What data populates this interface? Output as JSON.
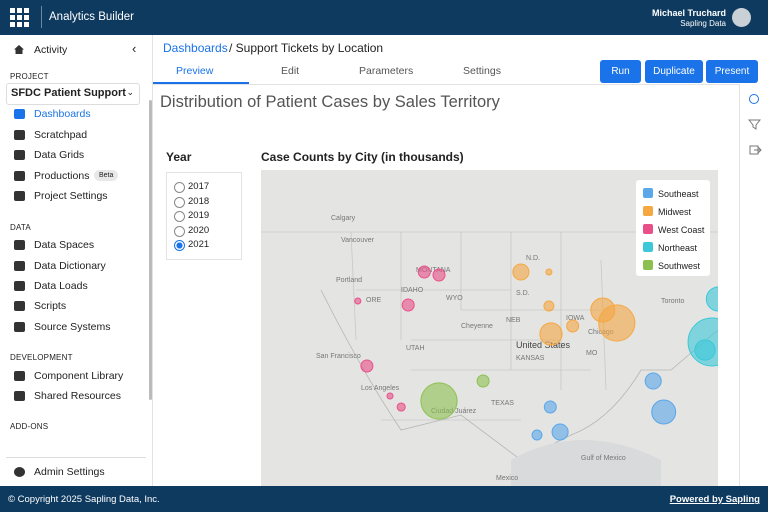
{
  "app": {
    "title": "Analytics Builder",
    "user": "Michael Truchard",
    "org": "Sapling Data"
  },
  "sidebar": {
    "activity": "Activity",
    "project_label": "PROJECT",
    "project": "SFDC Patient Support",
    "project_items": [
      "Dashboards",
      "Scratchpad",
      "Data Grids",
      "Productions",
      "Project Settings"
    ],
    "beta": "Beta",
    "data_label": "DATA",
    "data_items": [
      "Data Spaces",
      "Data Dictionary",
      "Data Loads",
      "Scripts",
      "Source Systems"
    ],
    "dev_label": "DEVELOPMENT",
    "dev_items": [
      "Component Library",
      "Shared Resources"
    ],
    "addons_label": "ADD-ONS",
    "admin": "Admin Settings"
  },
  "breadcrumb": {
    "link": "Dashboards",
    "current": "/ Support Tickets by Location"
  },
  "tabs": [
    "Preview",
    "Edit",
    "Parameters",
    "Settings"
  ],
  "buttons": [
    "Run",
    "Duplicate",
    "Present"
  ],
  "dashboard": {
    "title": "Distribution of Patient Cases by Sales Territory",
    "filter": {
      "label": "Year",
      "options": [
        "2017",
        "2018",
        "2019",
        "2020",
        "2021"
      ],
      "selected": 4
    },
    "map": {
      "title": "Case Counts by City (in thousands)",
      "legend": [
        {
          "name": "Southeast",
          "color": "#5aa7ea"
        },
        {
          "name": "Midwest",
          "color": "#f5a742"
        },
        {
          "name": "West Coast",
          "color": "#e9508a"
        },
        {
          "name": "Northeast",
          "color": "#3cc8d8"
        },
        {
          "name": "Southwest",
          "color": "#8cc152"
        }
      ],
      "points": [
        {
          "region": 2,
          "lon": -112.8,
          "lat": 46.5,
          "value": 3.5
        },
        {
          "region": 2,
          "lon": -110.7,
          "lat": 46.2,
          "value": 3.5
        },
        {
          "region": 2,
          "lon": -122.3,
          "lat": 43.6,
          "value": 0.9
        },
        {
          "region": 2,
          "lon": -115.1,
          "lat": 43.2,
          "value": 3.5
        },
        {
          "region": 2,
          "lon": -121.0,
          "lat": 37.1,
          "value": 3.5
        },
        {
          "region": 2,
          "lon": -117.7,
          "lat": 34.1,
          "value": 0.9
        },
        {
          "region": 2,
          "lon": -116.1,
          "lat": 33.0,
          "value": 1.6
        },
        {
          "region": 4,
          "lon": -110.7,
          "lat": 33.6,
          "value": 32
        },
        {
          "region": 4,
          "lon": -104.4,
          "lat": 35.6,
          "value": 3.5
        },
        {
          "region": 1,
          "lon": -99.0,
          "lat": 46.5,
          "value": 6.3
        },
        {
          "region": 1,
          "lon": -95.0,
          "lat": 46.5,
          "value": 0.9
        },
        {
          "region": 1,
          "lon": -95.0,
          "lat": 43.1,
          "value": 2.4
        },
        {
          "region": 1,
          "lon": -94.7,
          "lat": 40.3,
          "value": 12
        },
        {
          "region": 1,
          "lon": -91.6,
          "lat": 41.1,
          "value": 3.5
        },
        {
          "region": 1,
          "lon": -87.3,
          "lat": 42.7,
          "value": 14
        },
        {
          "region": 1,
          "lon": -85.3,
          "lat": 41.4,
          "value": 32
        },
        {
          "region": 0,
          "lon": -80.1,
          "lat": 35.6,
          "value": 6.3
        },
        {
          "region": 0,
          "lon": -78.6,
          "lat": 32.5,
          "value": 14
        },
        {
          "region": 0,
          "lon": -94.8,
          "lat": 33.0,
          "value": 3.5
        },
        {
          "region": 0,
          "lon": -93.4,
          "lat": 30.5,
          "value": 6.3
        },
        {
          "region": 0,
          "lon": -96.7,
          "lat": 30.2,
          "value": 2.4
        },
        {
          "region": 3,
          "lon": -70.8,
          "lat": 43.8,
          "value": 14
        },
        {
          "region": 3,
          "lon": -71.7,
          "lat": 39.5,
          "value": 56
        },
        {
          "region": 3,
          "lon": -72.7,
          "lat": 38.7,
          "value": 10
        }
      ],
      "places": [
        "Calgary",
        "Vancouver",
        "Portland",
        "MONTANA",
        "IDAHO",
        "ORE",
        "WYO",
        "Cheyenne",
        "UTAH",
        "NEB",
        "KANSAS",
        "San Francisco",
        "Los Angeles",
        "United States",
        "Ciudad Juárez",
        "Mexico",
        "Gulf of Mexico",
        "Toronto",
        "Chicago",
        "N.D.",
        "S.D.",
        "IOWA",
        "MO",
        "TEXAS"
      ]
    }
  },
  "footer": {
    "copyright": "© Copyright 2025 Sapling Data, Inc.",
    "powered": "Powered by Sapling"
  }
}
